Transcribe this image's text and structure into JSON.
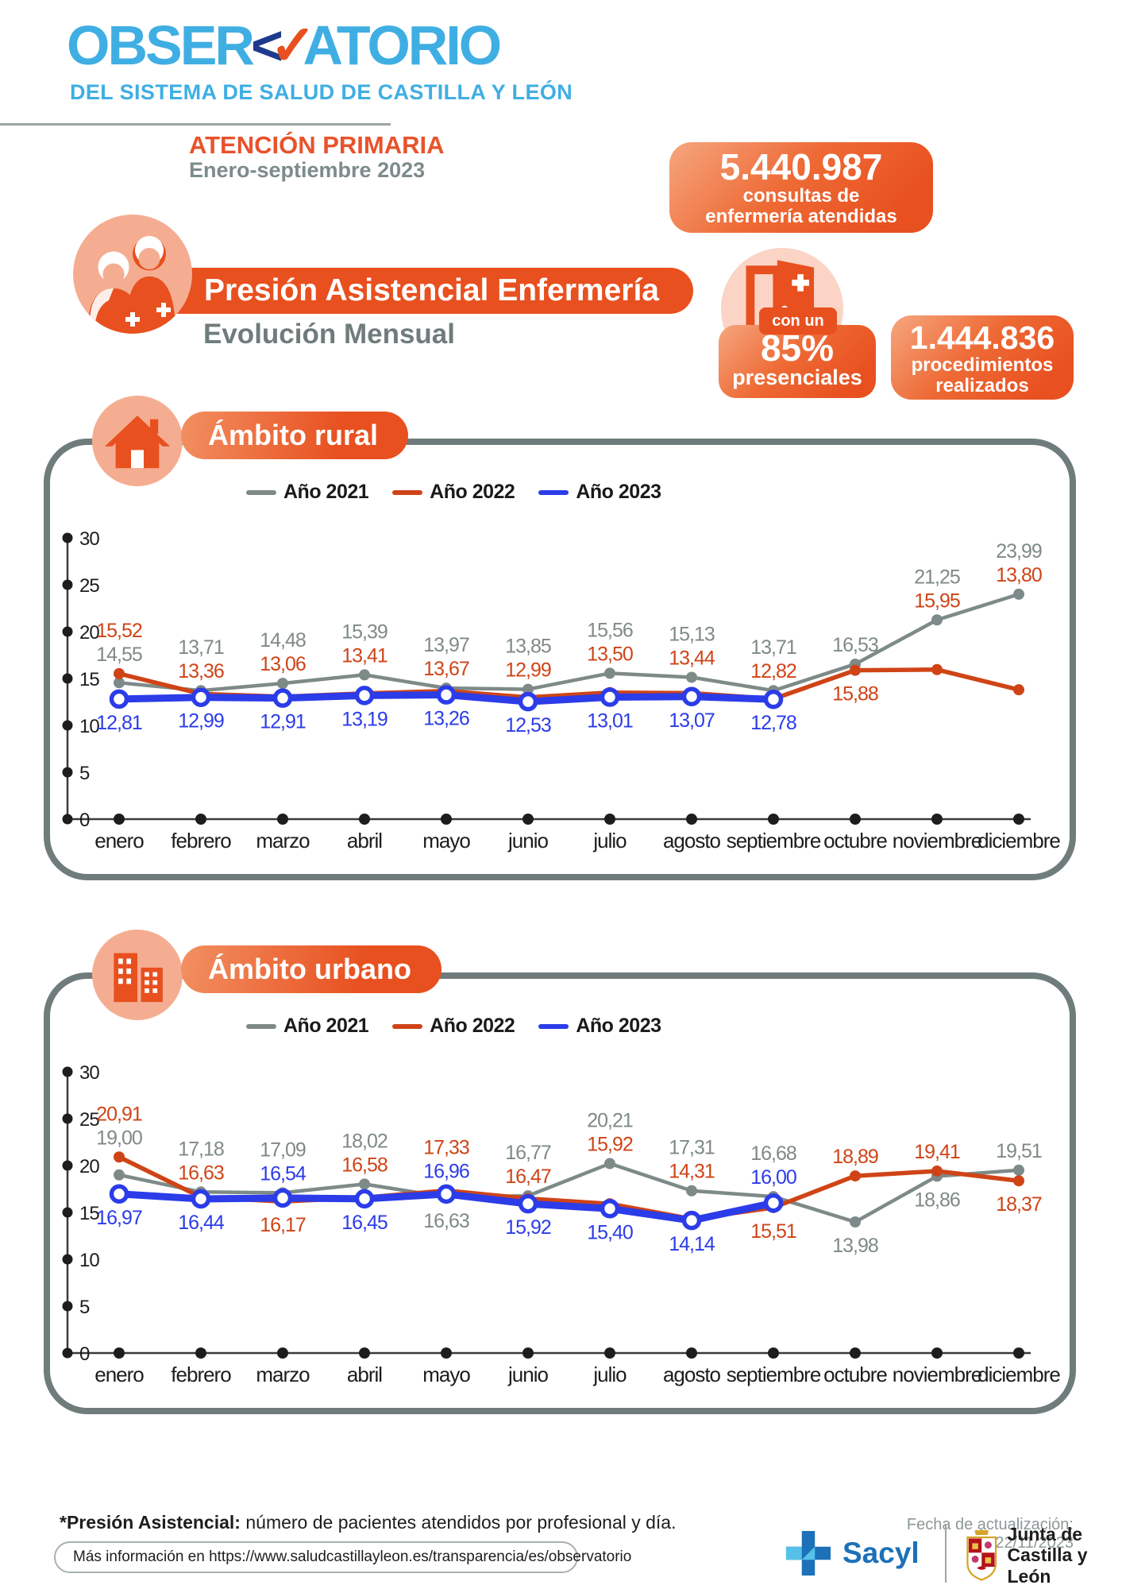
{
  "header": {
    "logo": {
      "part1": "OBSER",
      "lt": "<",
      "check": "✓",
      "part2": "ATORIO",
      "subtitle": "DEL SISTEMA DE SALUD DE CASTILLA Y LEÓN"
    },
    "program": "ATENCIÓN PRIMARIA",
    "period": "Enero-septiembre 2023"
  },
  "badges": {
    "consultas": {
      "number": "5.440.987",
      "line1": "consultas de",
      "line2": "enfermería atendidas"
    },
    "presenciales": {
      "intro": "con un",
      "value": "85%",
      "label": "presenciales"
    },
    "procedimientos": {
      "number": "1.444.836",
      "line1": "procedimientos",
      "line2": "realizados"
    }
  },
  "title_block": {
    "title": "Presión Asistencial Enfermería",
    "subtitle": "Evolución Mensual"
  },
  "chart_data": {
    "type": "line",
    "months": [
      "enero",
      "febrero",
      "marzo",
      "abril",
      "mayo",
      "junio",
      "julio",
      "agosto",
      "septiembre",
      "octubre",
      "noviembre",
      "diciembre"
    ],
    "yticks": [
      30,
      25,
      20,
      15,
      10,
      5,
      0
    ],
    "ylim": [
      0,
      30
    ],
    "legend": [
      "Año 2021",
      "Año 2022",
      "Año 2023"
    ],
    "colors": {
      "ano2021": "#7E8A88",
      "ano2022": "#CF4417",
      "ano2023": "#2B3CE8",
      "axis": "#1d1d1b"
    },
    "charts": {
      "rural": {
        "title": "Ámbito rural",
        "series": [
          {
            "name": "Año 2021",
            "color": "#7E8A88",
            "values": [
              14.55,
              13.71,
              14.48,
              15.39,
              13.97,
              13.85,
              15.56,
              15.13,
              13.71,
              16.53,
              21.25,
              23.99
            ],
            "label_pos": [
              "a",
              "a",
              "a",
              "a",
              "a",
              "a",
              "a",
              "a",
              "a",
              "a",
              "a",
              "a"
            ]
          },
          {
            "name": "Año 2022",
            "color": "#CF4417",
            "values": [
              15.52,
              13.36,
              13.06,
              13.41,
              13.67,
              12.99,
              13.5,
              13.44,
              12.82,
              15.88,
              15.95,
              13.8
            ],
            "label_pos": [
              "a",
              "a",
              "a",
              "a",
              "a",
              "a",
              "a",
              "a",
              "a",
              "b",
              "a",
              "a"
            ]
          },
          {
            "name": "Año 2023",
            "color": "#2B3CE8",
            "values": [
              12.81,
              12.99,
              12.91,
              13.19,
              13.26,
              12.53,
              13.01,
              13.07,
              12.78
            ],
            "label_pos": [
              "b",
              "b",
              "b",
              "b",
              "b",
              "b",
              "b",
              "b",
              "b"
            ]
          }
        ]
      },
      "urbano": {
        "title": "Ámbito urbano",
        "series": [
          {
            "name": "Año 2021",
            "color": "#7E8A88",
            "values": [
              19.0,
              17.18,
              17.09,
              18.02,
              16.63,
              16.77,
              20.21,
              17.31,
              16.68,
              13.98,
              18.86,
              19.51
            ],
            "label_pos": [
              "a",
              "a",
              "a",
              "a",
              "b",
              "a",
              "a",
              "a",
              "a",
              "b",
              "b",
              "a"
            ]
          },
          {
            "name": "Año 2022",
            "color": "#CF4417",
            "values": [
              20.91,
              16.63,
              16.17,
              16.58,
              17.33,
              16.47,
              15.92,
              14.31,
              15.51,
              18.89,
              19.41,
              18.37
            ],
            "label_pos": [
              "a",
              "a",
              "b",
              "a",
              "a",
              "a",
              "a",
              "a",
              "b",
              "a",
              "a",
              "b"
            ]
          },
          {
            "name": "Año 2023",
            "color": "#2B3CE8",
            "values": [
              16.97,
              16.44,
              16.54,
              16.45,
              16.96,
              15.92,
              15.4,
              14.14,
              16.0
            ],
            "label_pos": [
              "b",
              "b",
              "a",
              "b",
              "a",
              "b",
              "b",
              "b",
              "a"
            ]
          }
        ]
      }
    }
  },
  "footer": {
    "note_bold": "*Presión Asistencial:",
    "note_rest": " número de pacientes atendidos por profesional y día.",
    "updated": "Fecha de actualización: 22/11/2023",
    "more_info": "Más información en https://www.saludcastillayleon.es/transparencia/es/observatorio",
    "sacyl": "Sacyl",
    "junta_line1": "Junta de",
    "junta_line2": "Castilla y León"
  }
}
